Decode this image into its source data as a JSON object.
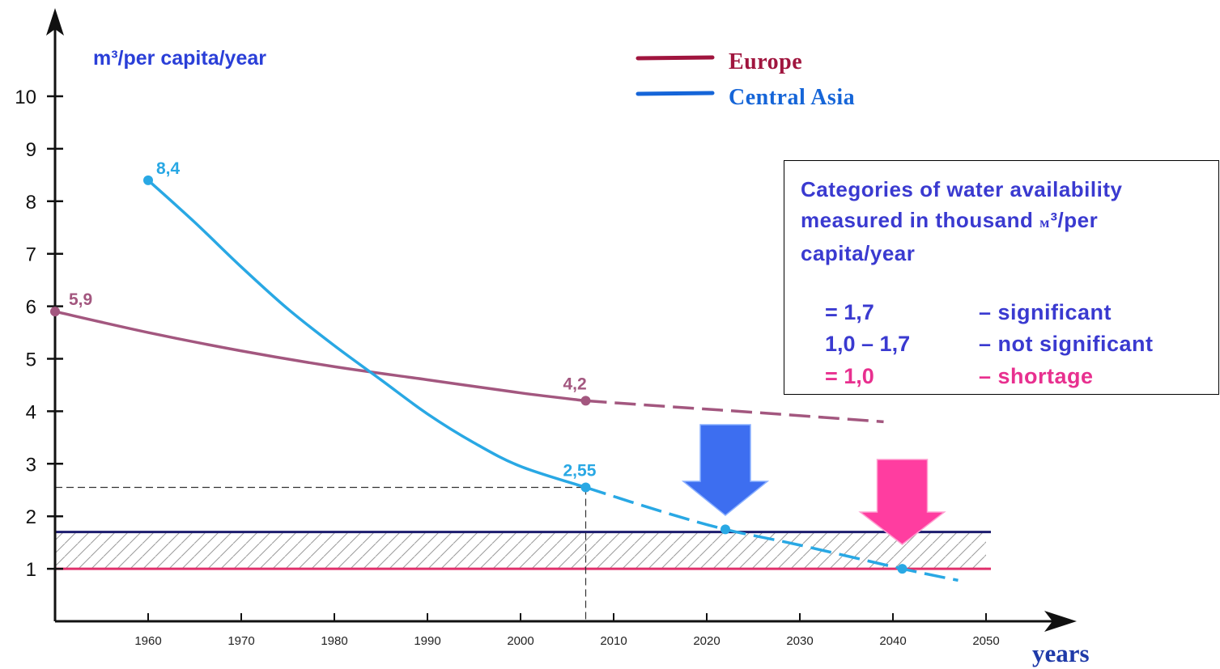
{
  "chart_data": {
    "type": "line",
    "ylabel": "m³/per capita/year",
    "xlabel": "years",
    "xlim": [
      1950,
      2050
    ],
    "ylim": [
      0,
      10
    ],
    "x_ticks": [
      1960,
      1970,
      1980,
      1990,
      2000,
      2010,
      2020,
      2030,
      2040,
      2050
    ],
    "y_ticks": [
      1,
      2,
      3,
      4,
      5,
      6,
      7,
      8,
      9,
      10
    ],
    "legend_position": "top-center",
    "series": [
      {
        "name": "Europe",
        "color": "#a3577f",
        "legend_color": "#a0153e",
        "actual": {
          "x": [
            1950,
            1960,
            1970,
            1980,
            1990,
            2000,
            2007
          ],
          "y": [
            5.9,
            5.5,
            5.15,
            4.85,
            4.6,
            4.35,
            4.2
          ]
        },
        "projected": {
          "x": [
            2007,
            2015,
            2025,
            2039
          ],
          "y": [
            4.2,
            4.1,
            3.98,
            3.8
          ]
        },
        "labeled_points": [
          {
            "x": 1950,
            "y": 5.9,
            "label": "5,9"
          },
          {
            "x": 2007,
            "y": 4.2,
            "label": "4,2"
          }
        ]
      },
      {
        "name": "Central Asia",
        "color": "#29a8e4",
        "legend_color": "#1565d8",
        "actual": {
          "x": [
            1960,
            1965,
            1970,
            1975,
            1980,
            1985,
            1990,
            1995,
            2000,
            2007
          ],
          "y": [
            8.4,
            7.6,
            6.75,
            5.95,
            5.25,
            4.6,
            3.95,
            3.4,
            2.95,
            2.55
          ]
        },
        "projected": {
          "x": [
            2007,
            2015,
            2022,
            2030,
            2041,
            2047
          ],
          "y": [
            2.55,
            2.1,
            1.75,
            1.45,
            1.0,
            0.78
          ]
        },
        "labeled_points": [
          {
            "x": 1960,
            "y": 8.4,
            "label": "8,4"
          },
          {
            "x": 2007,
            "y": 2.55,
            "label": "2,55"
          }
        ],
        "markers": [
          {
            "x": 2022,
            "y": 1.75
          },
          {
            "x": 2041,
            "y": 1.0
          }
        ]
      }
    ],
    "reference_lines": [
      {
        "y": 1.7,
        "color": "#1c1c6e",
        "x_end": 2050
      },
      {
        "y": 1.0,
        "color": "#e0306b",
        "x_end": 2050
      }
    ],
    "hatched_band": {
      "y_from": 1.0,
      "y_to": 1.7
    },
    "guide_lines": {
      "x": 2007,
      "y": 2.55
    },
    "arrows": [
      {
        "x": 2022,
        "color": "#3d6ef0"
      },
      {
        "x": 2041,
        "color": "#ff3da0"
      }
    ]
  },
  "categories_box": {
    "title_parts": [
      "Categories of water availability measured in thousand ",
      "м",
      "³/per capita/year"
    ],
    "rows": [
      {
        "range": "= 1,7",
        "description": "– significant",
        "color": "#3a3ad0"
      },
      {
        "range": "1,0 – 1,7",
        "description": "– not significant",
        "color": "#3a3ad0"
      },
      {
        "range": "= 1,0",
        "description": "– shortage",
        "color": "#e8308f"
      }
    ]
  }
}
